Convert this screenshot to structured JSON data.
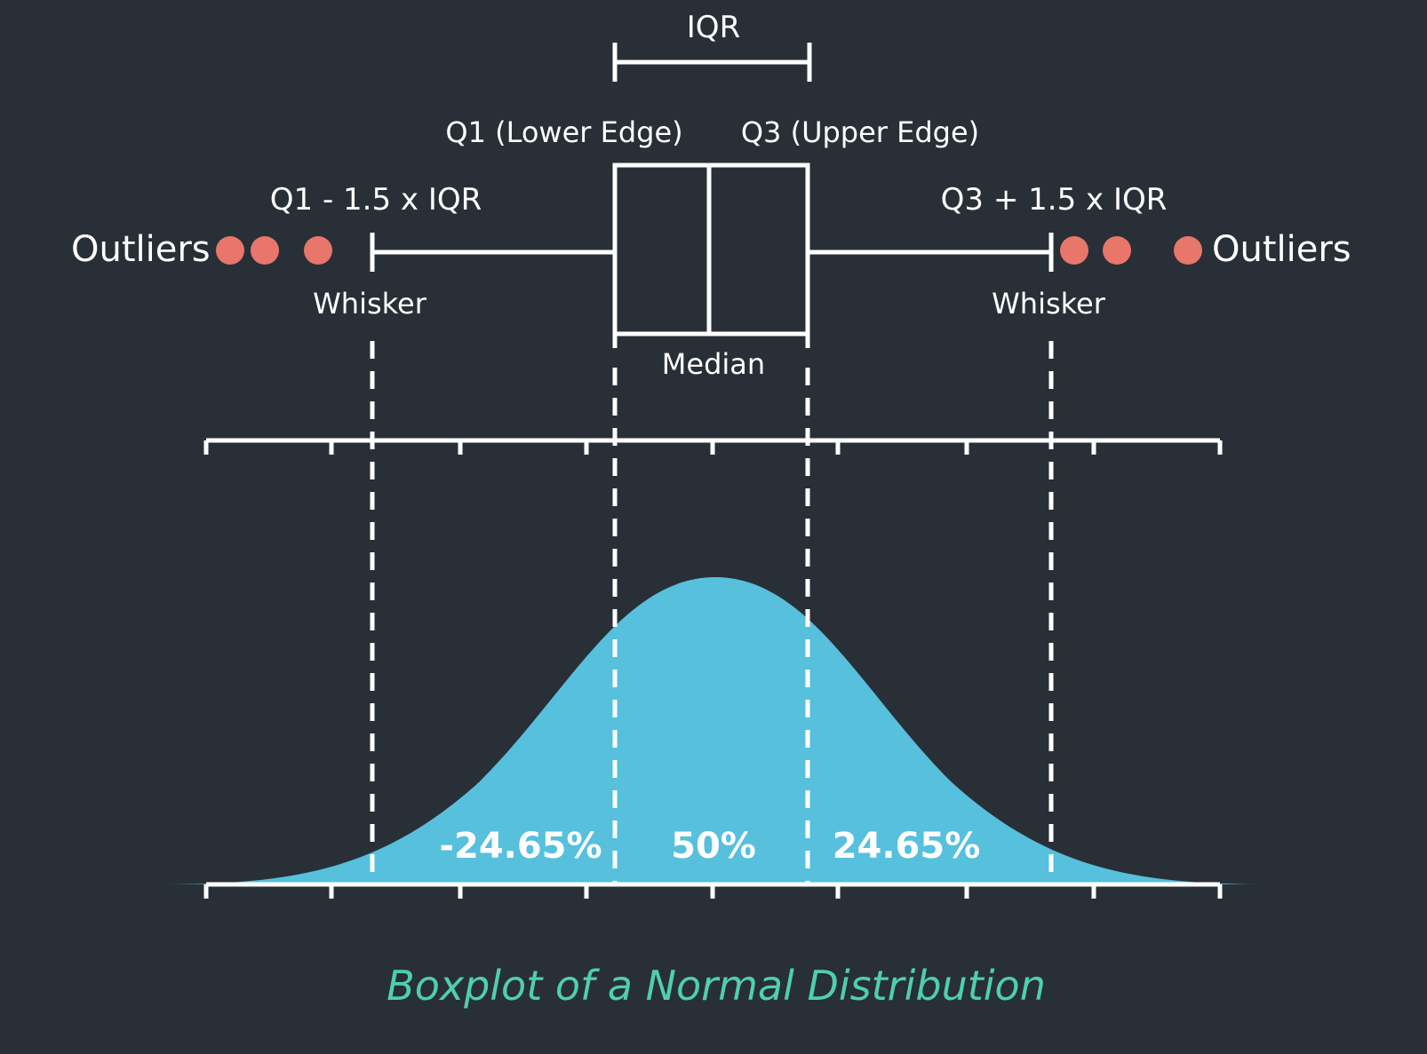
{
  "diagram": {
    "iqr_label": "IQR",
    "q1_label": "Q1 (Lower Edge)",
    "q3_label": "Q3 (Upper Edge)",
    "lower_fence_label": "Q1 - 1.5 x IQR",
    "upper_fence_label": "Q3 + 1.5 x IQR",
    "outliers_left_label": "Outliers",
    "outliers_right_label": "Outliers",
    "whisker_left_label": "Whisker",
    "whisker_right_label": "Whisker",
    "median_label": "Median",
    "pct_left": "-24.65%",
    "pct_center": "50%",
    "pct_right": "24.65%",
    "caption": "Boxplot of a Normal Distribution"
  },
  "colors": {
    "background": "#282f37",
    "lines": "#ffffff",
    "outlier": "#e8766a",
    "curve_fill": "#56c0dd",
    "caption": "#4fcfae"
  }
}
